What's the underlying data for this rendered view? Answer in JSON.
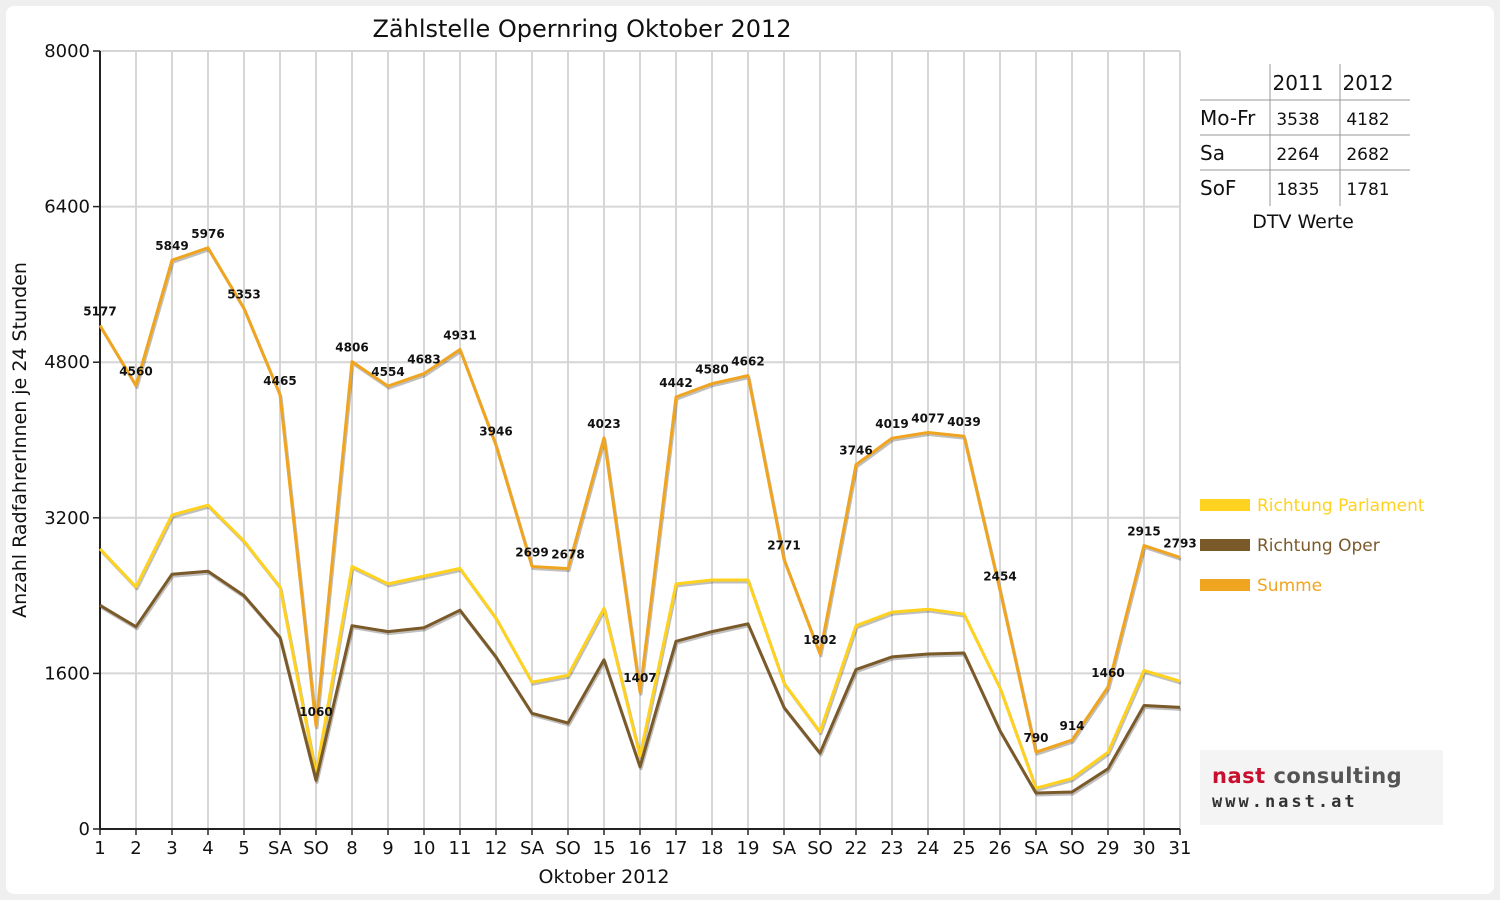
{
  "chart_data": {
    "type": "line",
    "title": "Zählstelle Opernring Oktober 2012",
    "xlabel": "Oktober 2012",
    "ylabel": "Anzahl RadfahrerInnen je 24 Stunden",
    "ylim": [
      0,
      8000
    ],
    "yticks": [
      "0",
      "1600",
      "3200",
      "4800",
      "6400",
      "8000"
    ],
    "grid": true,
    "legend_position": "right",
    "categories": [
      "1",
      "2",
      "3",
      "4",
      "5",
      "SA",
      "SO",
      "8",
      "9",
      "10",
      "11",
      "12",
      "SA",
      "SO",
      "15",
      "16",
      "17",
      "18",
      "19",
      "SA",
      "SO",
      "22",
      "23",
      "24",
      "25",
      "26",
      "SA",
      "SO",
      "29",
      "30",
      "31"
    ],
    "holiday_category_color": "#e00000",
    "series": [
      {
        "name": "Richtung Parlament",
        "color": "#ffd21f",
        "values": [
          2880,
          2490,
          3230,
          3330,
          2960,
          2490,
          560,
          2700,
          2520,
          2600,
          2680,
          2170,
          1510,
          1580,
          2270,
          750,
          2520,
          2560,
          2560,
          1500,
          1000,
          2090,
          2230,
          2260,
          2210,
          1450,
          420,
          520,
          790,
          1630,
          1520
        ]
      },
      {
        "name": "Richtung Oper",
        "color": "#7b5a2a",
        "values": [
          2300,
          2080,
          2620,
          2650,
          2400,
          1970,
          500,
          2090,
          2030,
          2070,
          2250,
          1770,
          1190,
          1090,
          1740,
          640,
          1930,
          2030,
          2110,
          1250,
          780,
          1640,
          1770,
          1800,
          1810,
          1010,
          370,
          380,
          620,
          1270,
          1250
        ]
      },
      {
        "name": "Summe",
        "color": "#f0a520",
        "values": [
          5177,
          4560,
          5849,
          5976,
          5353,
          4465,
          1060,
          4806,
          4554,
          4683,
          4931,
          3946,
          2699,
          2678,
          4023,
          1407,
          4442,
          4580,
          4662,
          2771,
          1802,
          3746,
          4019,
          4077,
          4039,
          2454,
          790,
          914,
          1460,
          2915,
          2793
        ]
      }
    ],
    "data_labels": [
      "5177",
      "4560",
      "5849",
      "5976",
      "5353",
      "4465",
      "1060",
      "4806",
      "4554",
      "4683",
      "4931",
      "3946",
      "2699",
      "2678",
      "4023",
      "1407",
      "4442",
      "4580",
      "4662",
      "2771",
      "1802",
      "3746",
      "4019",
      "4077",
      "4039",
      "2454",
      "790",
      "914",
      "1460",
      "2915",
      "2793"
    ]
  },
  "dtv_table": {
    "caption": "DTV Werte",
    "headers": [
      "",
      "2011",
      "2012"
    ],
    "rows": [
      {
        "label": "Mo-Fr",
        "v2011": "3538",
        "v2012": "4182"
      },
      {
        "label": "Sa",
        "v2011": "2264",
        "v2012": "2682"
      },
      {
        "label": "SoF",
        "v2011": "1835",
        "v2012": "1781"
      }
    ]
  },
  "logo": {
    "name_part1": "nast",
    "name_part2": "consulting",
    "url": "www.nast.at",
    "accent_color": "#c8102e"
  }
}
